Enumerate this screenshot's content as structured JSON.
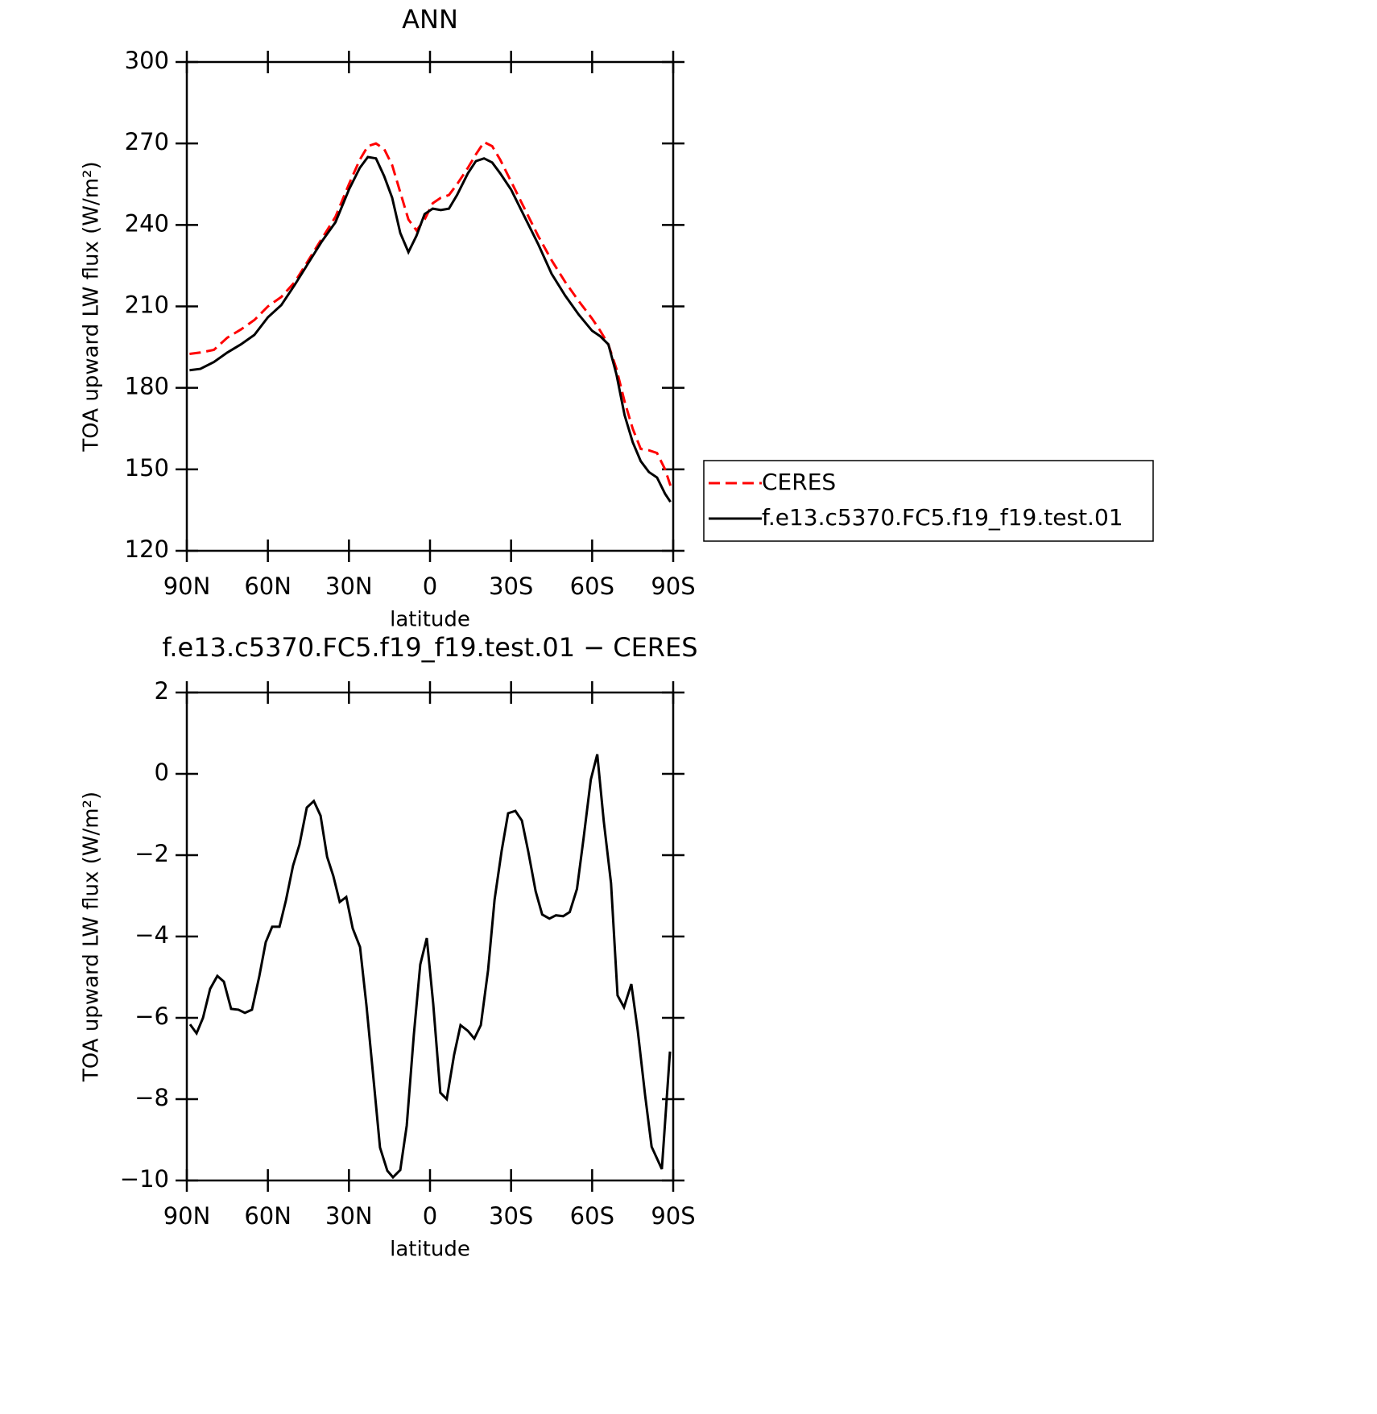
{
  "chart_data": [
    {
      "type": "line",
      "title": "ANN",
      "xlabel": "latitude",
      "ylabel": "TOA upward LW flux (W/m²)",
      "x": [
        89,
        85,
        80,
        75,
        70,
        65,
        60,
        55,
        50,
        45,
        40,
        35,
        30,
        26,
        23,
        20,
        17,
        14,
        11,
        8,
        5,
        2,
        -1,
        -4,
        -7,
        -10,
        -14,
        -17,
        -20,
        -23,
        -26,
        -30,
        -35,
        -40,
        -45,
        -50,
        -55,
        -60,
        -63,
        -66,
        -69,
        -72,
        -75,
        -78,
        -81,
        -84,
        -87,
        -89
      ],
      "series": [
        {
          "name": "CERES",
          "color": "#ff0000",
          "dash": true,
          "values": [
            192.5,
            193,
            194,
            198.5,
            201.5,
            205,
            210,
            213.5,
            219,
            227,
            235,
            243,
            255,
            264,
            269,
            270,
            268,
            262,
            252,
            242,
            238,
            242,
            248,
            250,
            251,
            255,
            261,
            266,
            270.5,
            269,
            264,
            256,
            246,
            236,
            227,
            219,
            212,
            205.5,
            201,
            196,
            187,
            175,
            165,
            157.5,
            157,
            156,
            150,
            144
          ]
        },
        {
          "name": "f.e13.c5370.FC5.f19_f19.test.01",
          "color": "#000000",
          "dash": false,
          "values": [
            186.5,
            187,
            189.5,
            193,
            196,
            199.5,
            206,
            210.5,
            218,
            226,
            234,
            241,
            253,
            261,
            265,
            264.5,
            258,
            250,
            237,
            230,
            236,
            244,
            246,
            245.5,
            246,
            251,
            259,
            263.5,
            264.5,
            263,
            259,
            253,
            243,
            233,
            222,
            214,
            207,
            201,
            199,
            196,
            185,
            170,
            160,
            153,
            149,
            147,
            141,
            138
          ]
        }
      ],
      "xlim": [
        90,
        -90
      ],
      "xticks": [
        {
          "value": 90,
          "label": "90N"
        },
        {
          "value": 60,
          "label": "60N"
        },
        {
          "value": 30,
          "label": "30N"
        },
        0,
        {
          "value": -30,
          "label": "30S"
        },
        {
          "value": -60,
          "label": "60S"
        },
        {
          "value": -90,
          "label": "90S"
        }
      ],
      "ylim": [
        120,
        300
      ],
      "yticks": [
        120,
        150,
        180,
        210,
        240,
        270,
        300
      ],
      "legend": "right"
    },
    {
      "type": "line",
      "title": "f.e13.c5370.FC5.f19_f19.test.01 − CERES",
      "xlabel": "latitude",
      "ylabel": "TOA upward LW flux (W/m²)",
      "x": [
        88.8,
        86.4,
        84,
        81.4,
        78.7,
        76.3,
        73.6,
        70.9,
        68.5,
        65.9,
        63.2,
        60.8,
        58.4,
        55.7,
        53.3,
        50.7,
        48.3,
        45.6,
        43,
        40.5,
        38.1,
        35.8,
        33.4,
        31,
        28.6,
        25.9,
        23.5,
        20.8,
        18.5,
        15.8,
        13.7,
        11,
        8.6,
        6,
        3.6,
        1.2,
        -1.2,
        -3.8,
        -6.2,
        -8.9,
        -11.3,
        -14,
        -16.4,
        -18.8,
        -21.5,
        -23.9,
        -26.5,
        -28.9,
        -31.6,
        -34,
        -36.4,
        -39.1,
        -41.5,
        -44.2,
        -46.6,
        -49.3,
        -51.7,
        -54.4,
        -56.8,
        -59.5,
        -61.9,
        -64.3,
        -67,
        -69.4,
        -71.8,
        -74.5,
        -76.9,
        -79.6,
        -82,
        -85.8,
        -88.8
      ],
      "series": [
        {
          "name": "f.e13.c5370.FC5.f19_f19.test.01 − CERES",
          "color": "#000000",
          "dash": false,
          "values": [
            -6.16,
            -6.38,
            -6.0,
            -5.29,
            -4.97,
            -5.11,
            -5.78,
            -5.8,
            -5.88,
            -5.8,
            -4.99,
            -4.14,
            -3.76,
            -3.76,
            -3.11,
            -2.26,
            -1.74,
            -0.83,
            -0.67,
            -1.03,
            -2.04,
            -2.51,
            -3.15,
            -3.03,
            -3.8,
            -4.26,
            -5.7,
            -7.58,
            -9.19,
            -9.76,
            -9.92,
            -9.74,
            -8.65,
            -6.42,
            -4.69,
            -4.04,
            -5.66,
            -7.84,
            -8.0,
            -6.91,
            -6.18,
            -6.32,
            -6.51,
            -6.18,
            -4.83,
            -3.09,
            -1.9,
            -0.97,
            -0.91,
            -1.15,
            -1.92,
            -2.89,
            -3.46,
            -3.56,
            -3.48,
            -3.5,
            -3.4,
            -2.83,
            -1.6,
            -0.14,
            0.48,
            -1.17,
            -2.69,
            -5.45,
            -5.74,
            -5.17,
            -6.32,
            -7.9,
            -9.17,
            -9.72,
            -6.83
          ]
        }
      ],
      "xlim": [
        90,
        -90
      ],
      "xticks": [
        {
          "value": 90,
          "label": "90N"
        },
        {
          "value": 60,
          "label": "60N"
        },
        {
          "value": 30,
          "label": "30N"
        },
        0,
        {
          "value": -30,
          "label": "30S"
        },
        {
          "value": -60,
          "label": "60S"
        },
        {
          "value": -90,
          "label": "90S"
        }
      ],
      "ylim": [
        -10,
        2
      ],
      "yticks": [
        -10,
        -8,
        -6,
        -4,
        -2,
        0,
        2
      ]
    }
  ]
}
